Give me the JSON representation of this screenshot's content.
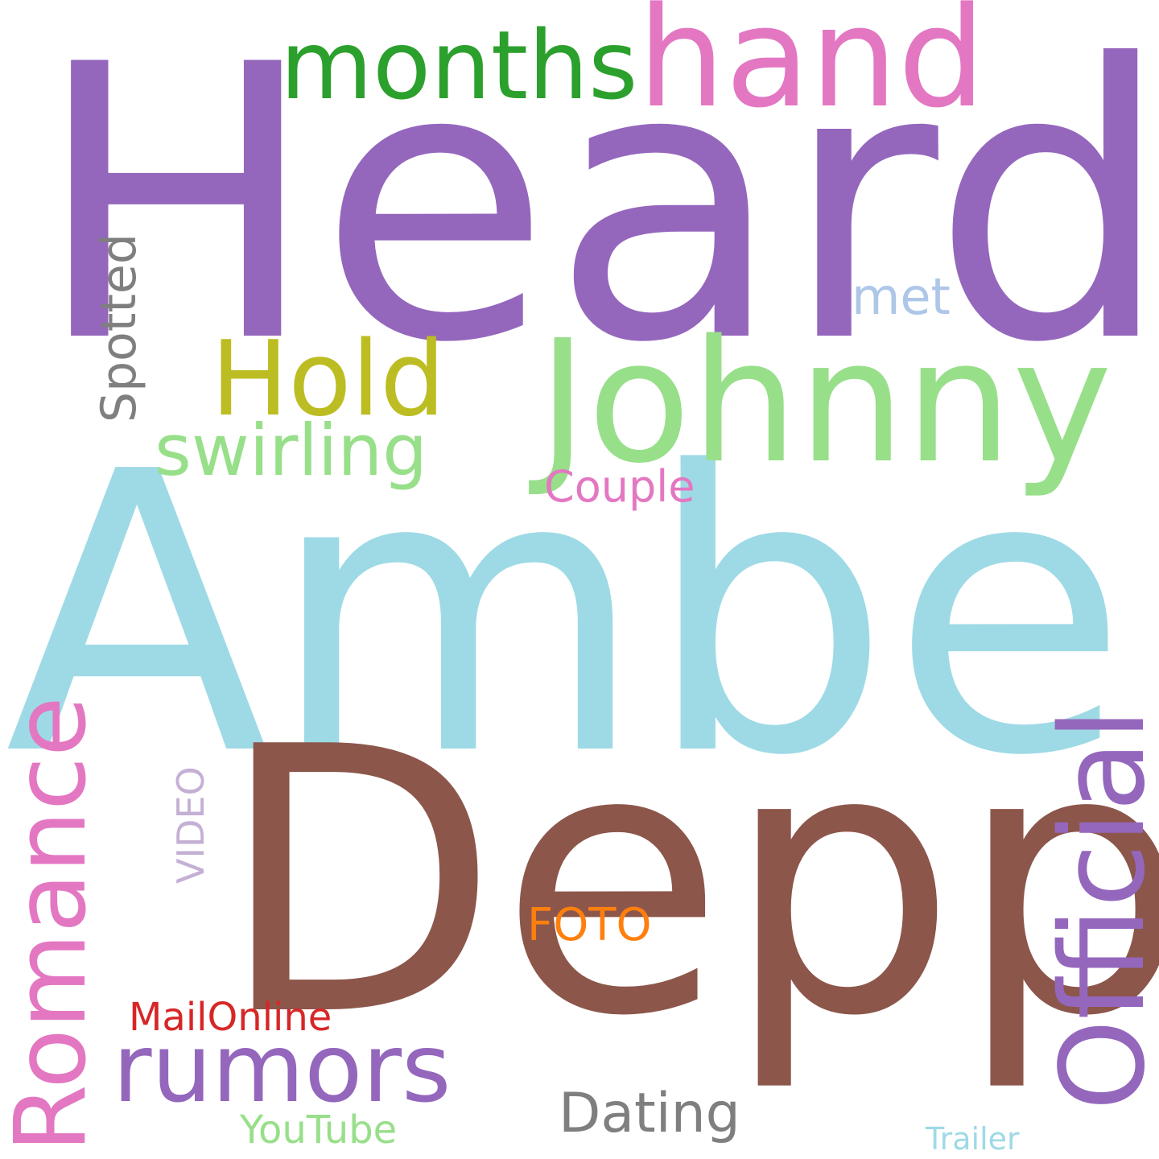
{
  "words": {
    "heard": {
      "text": "Heard",
      "color": "#9467bd"
    },
    "amber": {
      "text": "Amber",
      "color": "#9edae5"
    },
    "depp": {
      "text": "Depp",
      "color": "#8c564b"
    },
    "johnny": {
      "text": "Johnny",
      "color": "#98df8a"
    },
    "hand": {
      "text": "hand",
      "color": "#e377c2"
    },
    "months": {
      "text": "months",
      "color": "#2ca02c"
    },
    "hold": {
      "text": "Hold",
      "color": "#bcbd22"
    },
    "swirling": {
      "text": "swirling",
      "color": "#98df8a"
    },
    "couple": {
      "text": "Couple",
      "color": "#e377c2"
    },
    "met": {
      "text": "met",
      "color": "#aec7e8"
    },
    "spotted": {
      "text": "Spotted",
      "color": "#7f7f7f"
    },
    "official": {
      "text": "Official",
      "color": "#9467bd"
    },
    "romance": {
      "text": "Romance",
      "color": "#e377c2"
    },
    "video": {
      "text": "VIDEO",
      "color": "#c5b0d5"
    },
    "rumors": {
      "text": "rumors",
      "color": "#9467bd"
    },
    "foto": {
      "text": "FOTO",
      "color": "#ff7f0e"
    },
    "mailonline": {
      "text": "MailOnline",
      "color": "#d62728"
    },
    "dating": {
      "text": "Dating",
      "color": "#7f7f7f"
    },
    "youtube": {
      "text": "YouTube",
      "color": "#98df8a"
    },
    "trailer": {
      "text": "Trailer",
      "color": "#9edae5"
    }
  }
}
